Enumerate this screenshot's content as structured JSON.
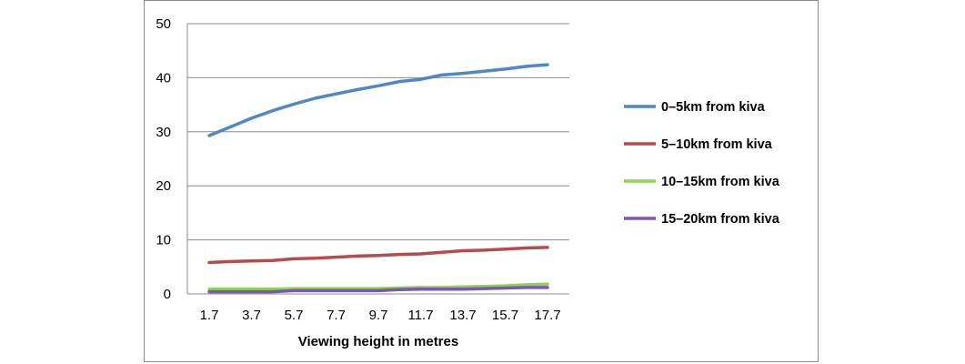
{
  "chart_data": {
    "type": "line",
    "title": "",
    "xlabel": "Viewing height in metres",
    "ylabel": "",
    "x": [
      "1.7",
      "2.7",
      "3.7",
      "4.7",
      "5.7",
      "6.7",
      "7.7",
      "8.7",
      "9.7",
      "10.7",
      "11.7",
      "12.7",
      "13.7",
      "14.7",
      "15.7",
      "16.7",
      "17.7"
    ],
    "x_tick_labels": [
      "1.7",
      "3.7",
      "5.7",
      "7.7",
      "9.7",
      "11.7",
      "13.7",
      "15.7",
      "17.7"
    ],
    "ylim": [
      0,
      50
    ],
    "y_ticks": [
      "0",
      "10",
      "20",
      "30",
      "40",
      "50"
    ],
    "grid": "horizontal",
    "legend_position": "right",
    "series": [
      {
        "name": "0–5km from kiva",
        "color": "#4f88c6",
        "values": [
          29.3,
          30.9,
          32.5,
          33.9,
          35.1,
          36.2,
          37.0,
          37.8,
          38.5,
          39.3,
          39.7,
          40.5,
          40.8,
          41.2,
          41.6,
          42.1,
          42.4
        ]
      },
      {
        "name": "5–10km from kiva",
        "color": "#b64b4c",
        "values": [
          5.8,
          6.0,
          6.1,
          6.2,
          6.5,
          6.6,
          6.8,
          7.0,
          7.1,
          7.3,
          7.4,
          7.7,
          8.0,
          8.1,
          8.3,
          8.5,
          8.6
        ]
      },
      {
        "name": "10–15km from kiva",
        "color": "#8cd449",
        "values": [
          0.9,
          0.9,
          0.9,
          0.9,
          1.0,
          1.0,
          1.0,
          1.0,
          1.0,
          1.1,
          1.2,
          1.2,
          1.3,
          1.4,
          1.5,
          1.7,
          1.8
        ]
      },
      {
        "name": "15–20km from kiva",
        "color": "#7a57b1",
        "values": [
          0.4,
          0.4,
          0.4,
          0.4,
          0.6,
          0.6,
          0.6,
          0.6,
          0.6,
          0.8,
          0.9,
          0.9,
          0.9,
          1.0,
          1.1,
          1.2,
          1.2
        ]
      }
    ]
  }
}
